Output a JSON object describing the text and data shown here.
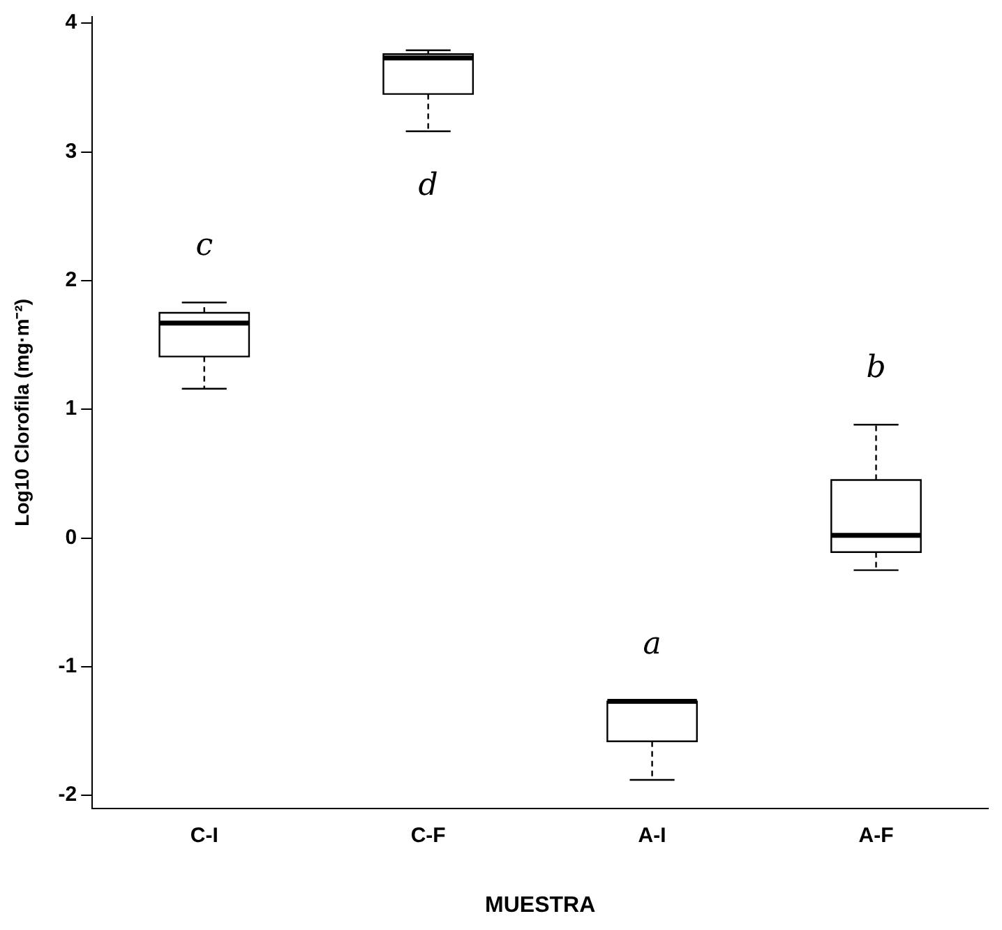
{
  "chart_data": {
    "type": "box",
    "xlabel": "MUESTRA",
    "ylabel": "Log10 Clorofila (mg·m⁻²)",
    "categories": [
      "C-I",
      "C-F",
      "A-I",
      "A-F"
    ],
    "boxes": [
      {
        "low": 1.16,
        "q1": 1.41,
        "median": 1.67,
        "q3": 1.75,
        "high": 1.83
      },
      {
        "low": 3.16,
        "q1": 3.45,
        "median": 3.73,
        "q3": 3.76,
        "high": 3.79
      },
      {
        "low": -1.88,
        "q1": -1.58,
        "median": -1.27,
        "q3": -1.27,
        "high": -1.27
      },
      {
        "low": -0.25,
        "q1": -0.11,
        "median": 0.02,
        "q3": 0.45,
        "high": 0.88
      }
    ],
    "ylim": [
      -2.1,
      4.05
    ],
    "yticks": [
      -2,
      -1,
      0,
      1,
      2,
      3,
      4
    ],
    "annotations": [
      "c",
      "d",
      "a",
      "b"
    ]
  }
}
